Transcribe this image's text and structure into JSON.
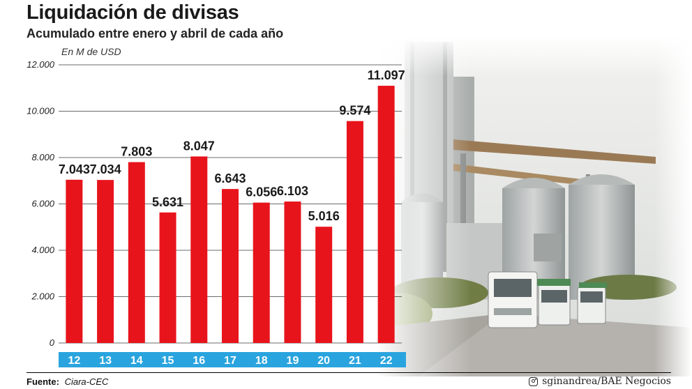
{
  "header": {
    "title": "Liquidación de divisas",
    "subtitle": "Acumulado entre enero y abril de cada año",
    "unit": "En M de USD"
  },
  "footer": {
    "source_label": "Fuente:",
    "source_value": "Ciara-CEC",
    "credit": "sginandrea/BAE Negocios",
    "credit_icon": "instagram-icon"
  },
  "colors": {
    "bar": "#e8141c",
    "axis_band": "#2aa4de",
    "axis_text": "#ffffff",
    "grid": "#3a3a3a"
  },
  "chart_data": {
    "type": "bar",
    "title": "Liquidación de divisas",
    "subtitle": "Acumulado entre enero y abril de cada año",
    "ylabel": "En M de USD",
    "categories": [
      "12",
      "13",
      "14",
      "15",
      "16",
      "17",
      "18",
      "19",
      "20",
      "21",
      "22"
    ],
    "values": [
      7043,
      7034,
      7803,
      5631,
      8047,
      6643,
      6056,
      6103,
      5016,
      9574,
      11097
    ],
    "value_labels": [
      "7.043",
      "7.034",
      "7.803",
      "5.631",
      "8.047",
      "6.643",
      "6.056",
      "6.103",
      "5.016",
      "9.574",
      "11.097"
    ],
    "yticks": [
      0,
      2000,
      4000,
      6000,
      8000,
      10000,
      12000
    ],
    "ytick_labels": [
      "0",
      "2.000",
      "4.000",
      "6.000",
      "8.000",
      "10.000",
      "12.000"
    ],
    "ylim": [
      0,
      12000
    ],
    "grid": true,
    "legend": "none"
  }
}
